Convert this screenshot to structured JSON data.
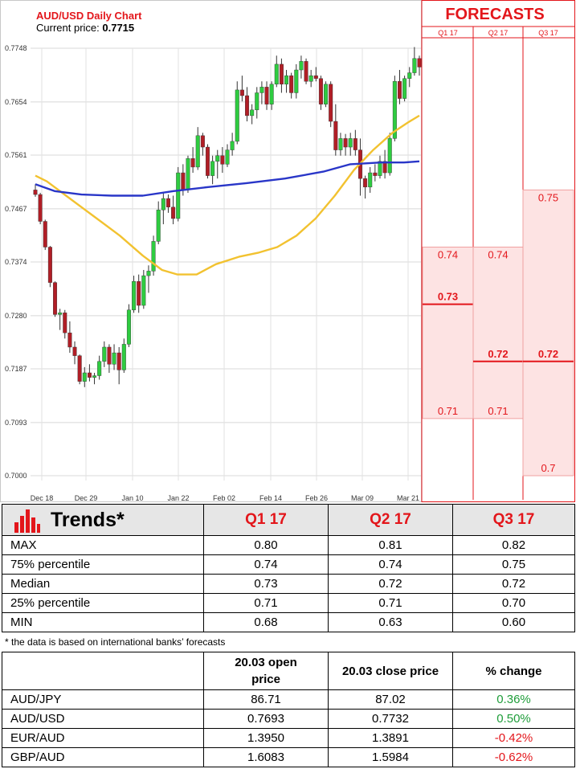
{
  "chart_data": {
    "type": "candlestick",
    "title": "AUD/USD Daily Chart",
    "current_price_label": "Current price:",
    "current_price": "0.7715",
    "y_ticks": [
      "0.7748",
      "0.7654",
      "0.7561",
      "0.7467",
      "0.7374",
      "0.7280",
      "0.7187",
      "0.7093",
      "0.7000"
    ],
    "x_ticks": [
      "Dec 18",
      "Dec 29",
      "Jan 10",
      "Jan 22",
      "Feb 02",
      "Feb 14",
      "Feb 26",
      "Mar 09",
      "Mar 21"
    ],
    "ylim": [
      0.7,
      0.7748
    ],
    "candles": [
      [
        0.75,
        0.751,
        0.7488,
        0.7492
      ],
      [
        0.7492,
        0.7495,
        0.744,
        0.7445
      ],
      [
        0.7445,
        0.7448,
        0.7395,
        0.74
      ],
      [
        0.74,
        0.7402,
        0.733,
        0.7338
      ],
      [
        0.7338,
        0.734,
        0.7278,
        0.7282
      ],
      [
        0.7282,
        0.7292,
        0.7255,
        0.7285
      ],
      [
        0.7285,
        0.729,
        0.724,
        0.725
      ],
      [
        0.725,
        0.727,
        0.7215,
        0.7225
      ],
      [
        0.7225,
        0.7235,
        0.7195,
        0.721
      ],
      [
        0.721,
        0.7212,
        0.716,
        0.7165
      ],
      [
        0.7165,
        0.719,
        0.7155,
        0.718
      ],
      [
        0.718,
        0.7195,
        0.7165,
        0.7172
      ],
      [
        0.7172,
        0.718,
        0.716,
        0.7175
      ],
      [
        0.7175,
        0.721,
        0.7168,
        0.72
      ],
      [
        0.72,
        0.7235,
        0.719,
        0.7225
      ],
      [
        0.7225,
        0.723,
        0.718,
        0.7195
      ],
      [
        0.7195,
        0.723,
        0.7185,
        0.7215
      ],
      [
        0.7215,
        0.7225,
        0.716,
        0.7185
      ],
      [
        0.7185,
        0.724,
        0.718,
        0.723
      ],
      [
        0.723,
        0.73,
        0.7225,
        0.729
      ],
      [
        0.729,
        0.735,
        0.7285,
        0.734
      ],
      [
        0.734,
        0.7352,
        0.7285,
        0.7298
      ],
      [
        0.7298,
        0.736,
        0.7292,
        0.735
      ],
      [
        0.735,
        0.7368,
        0.732,
        0.7358
      ],
      [
        0.7358,
        0.742,
        0.735,
        0.741
      ],
      [
        0.741,
        0.748,
        0.7405,
        0.7465
      ],
      [
        0.7465,
        0.7495,
        0.744,
        0.7485
      ],
      [
        0.7485,
        0.7492,
        0.746,
        0.747
      ],
      [
        0.747,
        0.749,
        0.744,
        0.745
      ],
      [
        0.745,
        0.754,
        0.7445,
        0.753
      ],
      [
        0.753,
        0.7545,
        0.749,
        0.75
      ],
      [
        0.75,
        0.756,
        0.7495,
        0.7555
      ],
      [
        0.7555,
        0.7575,
        0.753,
        0.754
      ],
      [
        0.754,
        0.761,
        0.7535,
        0.7595
      ],
      [
        0.7595,
        0.76,
        0.756,
        0.7575
      ],
      [
        0.7575,
        0.758,
        0.752,
        0.7525
      ],
      [
        0.7525,
        0.756,
        0.751,
        0.755
      ],
      [
        0.755,
        0.757,
        0.752,
        0.756
      ],
      [
        0.756,
        0.7575,
        0.753,
        0.7545
      ],
      [
        0.7545,
        0.758,
        0.754,
        0.757
      ],
      [
        0.757,
        0.76,
        0.756,
        0.7585
      ],
      [
        0.7585,
        0.769,
        0.758,
        0.7675
      ],
      [
        0.7675,
        0.77,
        0.7655,
        0.7665
      ],
      [
        0.7665,
        0.768,
        0.762,
        0.763
      ],
      [
        0.763,
        0.765,
        0.7615,
        0.764
      ],
      [
        0.764,
        0.768,
        0.7625,
        0.767
      ],
      [
        0.767,
        0.769,
        0.765,
        0.768
      ],
      [
        0.768,
        0.769,
        0.764,
        0.765
      ],
      [
        0.765,
        0.769,
        0.764,
        0.7685
      ],
      [
        0.7685,
        0.7735,
        0.768,
        0.772
      ],
      [
        0.772,
        0.773,
        0.767,
        0.7685
      ],
      [
        0.7685,
        0.771,
        0.767,
        0.77
      ],
      [
        0.77,
        0.7705,
        0.766,
        0.767
      ],
      [
        0.767,
        0.772,
        0.766,
        0.771
      ],
      [
        0.771,
        0.7735,
        0.7695,
        0.7725
      ],
      [
        0.7725,
        0.773,
        0.7685,
        0.769
      ],
      [
        0.769,
        0.771,
        0.768,
        0.77
      ],
      [
        0.77,
        0.7715,
        0.769,
        0.7695
      ],
      [
        0.7695,
        0.77,
        0.764,
        0.765
      ],
      [
        0.765,
        0.769,
        0.7645,
        0.7685
      ],
      [
        0.7685,
        0.769,
        0.761,
        0.762
      ],
      [
        0.762,
        0.765,
        0.756,
        0.757
      ],
      [
        0.757,
        0.76,
        0.756,
        0.759
      ],
      [
        0.759,
        0.7598,
        0.756,
        0.7575
      ],
      [
        0.7575,
        0.76,
        0.756,
        0.759
      ],
      [
        0.759,
        0.7605,
        0.756,
        0.757
      ],
      [
        0.757,
        0.759,
        0.749,
        0.752
      ],
      [
        0.752,
        0.7525,
        0.7485,
        0.7505
      ],
      [
        0.7505,
        0.754,
        0.7495,
        0.753
      ],
      [
        0.753,
        0.7545,
        0.7515,
        0.7525
      ],
      [
        0.7525,
        0.756,
        0.752,
        0.755
      ],
      [
        0.755,
        0.757,
        0.752,
        0.753
      ],
      [
        0.753,
        0.76,
        0.7525,
        0.759
      ],
      [
        0.759,
        0.77,
        0.7585,
        0.769
      ],
      [
        0.769,
        0.771,
        0.765,
        0.766
      ],
      [
        0.766,
        0.77,
        0.7655,
        0.7695
      ],
      [
        0.7695,
        0.7715,
        0.768,
        0.7705
      ],
      [
        0.7705,
        0.775,
        0.77,
        0.773
      ],
      [
        0.773,
        0.7735,
        0.77,
        0.7715
      ]
    ],
    "ma_yellow": [
      [
        0,
        0.7525
      ],
      [
        0.03,
        0.7515
      ],
      [
        0.08,
        0.749
      ],
      [
        0.15,
        0.7455
      ],
      [
        0.22,
        0.742
      ],
      [
        0.28,
        0.7385
      ],
      [
        0.33,
        0.736
      ],
      [
        0.37,
        0.7352
      ],
      [
        0.42,
        0.7352
      ],
      [
        0.47,
        0.737
      ],
      [
        0.53,
        0.7383
      ],
      [
        0.58,
        0.739
      ],
      [
        0.63,
        0.74
      ],
      [
        0.68,
        0.742
      ],
      [
        0.73,
        0.745
      ],
      [
        0.78,
        0.749
      ],
      [
        0.83,
        0.7535
      ],
      [
        0.88,
        0.757
      ],
      [
        0.93,
        0.76
      ],
      [
        0.97,
        0.7618
      ],
      [
        1,
        0.763
      ]
    ],
    "ma_blue": [
      [
        0,
        0.751
      ],
      [
        0.05,
        0.7498
      ],
      [
        0.12,
        0.7492
      ],
      [
        0.2,
        0.749
      ],
      [
        0.28,
        0.749
      ],
      [
        0.36,
        0.7498
      ],
      [
        0.45,
        0.7505
      ],
      [
        0.55,
        0.7512
      ],
      [
        0.65,
        0.752
      ],
      [
        0.75,
        0.7532
      ],
      [
        0.82,
        0.7545
      ],
      [
        0.9,
        0.7548
      ],
      [
        0.96,
        0.7548
      ],
      [
        1,
        0.755
      ]
    ],
    "forecasts": {
      "title": "FORECASTS",
      "columns": [
        "Q1 17",
        "Q2 17",
        "Q3 17"
      ],
      "ylim": [
        0.7,
        0.7748
      ],
      "bands": [
        {
          "q75": 0.74,
          "median": 0.73,
          "q25": 0.71,
          "labels": [
            "0.74",
            "0.73",
            "0.71"
          ]
        },
        {
          "q75": 0.74,
          "median": 0.72,
          "q25": 0.71,
          "labels": [
            "0.74",
            "0.72",
            "0.71"
          ]
        },
        {
          "q75": 0.75,
          "median": 0.72,
          "q25": 0.7,
          "labels": [
            "0.75",
            "0.72",
            "0.7"
          ]
        }
      ]
    }
  },
  "colors": {
    "accent": "#e3161b",
    "band_fill": "#fde3e3",
    "band_border": "#f0a0a0",
    "bull": "#2ecc40",
    "bear": "#b11e26",
    "ma_yellow": "#f2c230",
    "ma_blue": "#2936c8"
  },
  "trends": {
    "title": "Trends*",
    "icon": "bar-chart-icon",
    "columns": [
      "Q1 17",
      "Q2 17",
      "Q3 17"
    ],
    "rows": [
      {
        "label": "MAX",
        "values": [
          "0.80",
          "0.81",
          "0.82"
        ]
      },
      {
        "label": "75% percentile",
        "values": [
          "0.74",
          "0.74",
          "0.75"
        ]
      },
      {
        "label": "Median",
        "values": [
          "0.73",
          "0.72",
          "0.72"
        ]
      },
      {
        "label": "25% percentile",
        "values": [
          "0.71",
          "0.71",
          "0.70"
        ]
      },
      {
        "label": "MIN",
        "values": [
          "0.68",
          "0.63",
          "0.60"
        ]
      }
    ],
    "footnote": "* the data is based on international banks’ forecasts"
  },
  "fx": {
    "headers": [
      "",
      "20.03 open price",
      "20.03 close price",
      "% change"
    ],
    "rows": [
      {
        "pair": "AUD/JPY",
        "open": "86.71",
        "close": "87.02",
        "change": "0.36%",
        "dir": "pos"
      },
      {
        "pair": "AUD/USD",
        "open": "0.7693",
        "close": "0.7732",
        "change": "0.50%",
        "dir": "pos"
      },
      {
        "pair": "EUR/AUD",
        "open": "1.3950",
        "close": "1.3891",
        "change": "-0.42%",
        "dir": "neg"
      },
      {
        "pair": "GBP/AUD",
        "open": "1.6083",
        "close": "1.5984",
        "change": "-0.62%",
        "dir": "neg"
      }
    ]
  }
}
